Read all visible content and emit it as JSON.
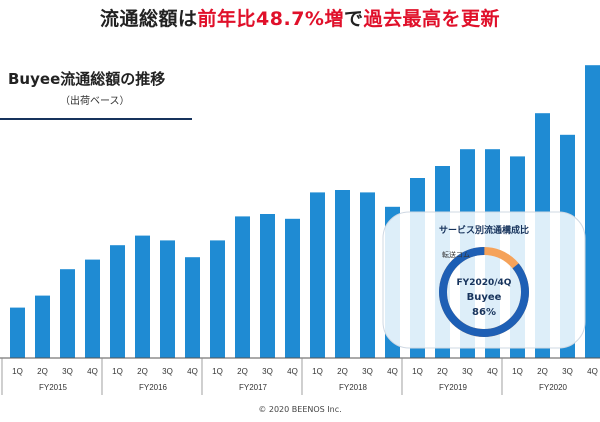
{
  "headline": {
    "part1": "流通総額は",
    "part2": "前年比48.7%増",
    "part3": "で",
    "part4": "過去最高を更新"
  },
  "subtitle": {
    "title": "Buyee流通総額の推移",
    "note": "（出荷ベース）"
  },
  "inset": {
    "title": "サービス別流通構成比",
    "small_label": "転送コム",
    "center_line1": "FY2020/4Q",
    "center_line2": "Buyee",
    "center_line3": "86%",
    "buyee_share": 0.86
  },
  "copyright": "© 2020 BEENOS Inc.",
  "colors": {
    "bar": "#1f8bd3",
    "headline_red": "#e0102a",
    "ring_blue": "#1e5fb5",
    "ring_orange": "#f5a25a"
  },
  "chart_data": {
    "type": "bar",
    "title": "Buyee流通総額の推移",
    "subtitle": "（出荷ベース）",
    "categories": [
      "1Q",
      "2Q",
      "3Q",
      "4Q",
      "1Q",
      "2Q",
      "3Q",
      "4Q",
      "1Q",
      "2Q",
      "3Q",
      "4Q",
      "1Q",
      "2Q",
      "3Q",
      "4Q",
      "1Q",
      "2Q",
      "3Q",
      "4Q",
      "1Q",
      "2Q",
      "3Q",
      "4Q"
    ],
    "groups": [
      "FY2015",
      "FY2016",
      "FY2017",
      "FY2018",
      "FY2019",
      "FY2020"
    ],
    "values": [
      21,
      26,
      37,
      41,
      47,
      51,
      49,
      42,
      49,
      59,
      60,
      58,
      69,
      70,
      69,
      63,
      75,
      80,
      87,
      87,
      84,
      102,
      93,
      122
    ],
    "ylim": [
      0,
      125
    ],
    "xlabel": "",
    "ylabel": "",
    "axis_labels_visible": false
  }
}
